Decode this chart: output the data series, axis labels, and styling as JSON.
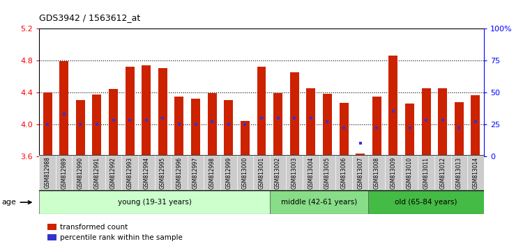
{
  "title": "GDS3942 / 1563612_at",
  "samples": [
    "GSM812988",
    "GSM812989",
    "GSM812990",
    "GSM812991",
    "GSM812992",
    "GSM812993",
    "GSM812994",
    "GSM812995",
    "GSM812996",
    "GSM812997",
    "GSM812998",
    "GSM812999",
    "GSM813000",
    "GSM813001",
    "GSM813002",
    "GSM813003",
    "GSM813004",
    "GSM813005",
    "GSM813006",
    "GSM813007",
    "GSM813008",
    "GSM813009",
    "GSM813010",
    "GSM813011",
    "GSM813012",
    "GSM813013",
    "GSM813014"
  ],
  "bar_values": [
    4.4,
    4.79,
    4.3,
    4.37,
    4.44,
    4.72,
    4.74,
    4.7,
    4.35,
    4.32,
    4.39,
    4.3,
    4.04,
    4.72,
    4.39,
    4.65,
    4.45,
    4.38,
    4.27,
    3.63,
    4.35,
    4.86,
    4.26,
    4.45,
    4.45,
    4.28,
    4.36
  ],
  "percentile_values": [
    25,
    33,
    25,
    25,
    28,
    28,
    28,
    30,
    25,
    25,
    27,
    25,
    25,
    30,
    30,
    30,
    30,
    27,
    22,
    10,
    22,
    35,
    22,
    28,
    28,
    22,
    27
  ],
  "bar_color": "#cc2200",
  "percentile_color": "#3333cc",
  "ylim": [
    3.6,
    5.2
  ],
  "y_ticks": [
    3.6,
    4.0,
    4.4,
    4.8,
    5.2
  ],
  "groups": [
    {
      "label": "young (19-31 years)",
      "start": 0,
      "end": 13,
      "color": "#ccffcc"
    },
    {
      "label": "middle (42-61 years)",
      "start": 14,
      "end": 19,
      "color": "#88dd88"
    },
    {
      "label": "old (65-84 years)",
      "start": 20,
      "end": 26,
      "color": "#44bb44"
    }
  ],
  "age_label": "age",
  "legend_items": [
    {
      "label": "transformed count",
      "color": "#cc2200"
    },
    {
      "label": "percentile rank within the sample",
      "color": "#3333cc"
    }
  ],
  "tick_label_bg": "#cccccc",
  "grid_lines": [
    4.0,
    4.4,
    4.8
  ]
}
